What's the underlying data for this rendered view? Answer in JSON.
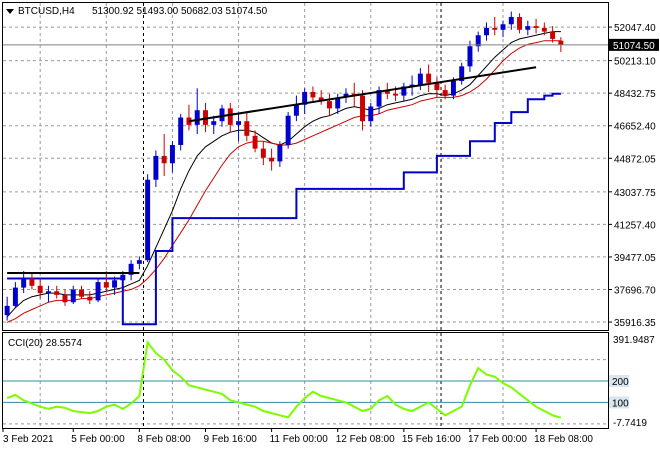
{
  "header": {
    "symbol": "BTCUSD,H4",
    "ohlc": "51300.92 51493.00 50682.03 51074.50"
  },
  "indicator": {
    "label": "CCI(20) 28.5574",
    "levels": [
      200,
      100
    ],
    "level_labels": [
      "200",
      "100"
    ],
    "axis_top": "391.9487",
    "axis_bottom": "-7.7419"
  },
  "chart_data": [
    {
      "type": "candlestick",
      "title": "BTCUSD,H4",
      "price_ticks": [
        52047.4,
        50213.1,
        48432.75,
        46652.4,
        44872.05,
        43037.75,
        41257.4,
        39477.05,
        37696.7,
        35916.35
      ],
      "price_tick_labels": [
        "52047.40",
        "50213.10",
        "48432.75",
        "46652.40",
        "44872.05",
        "43037.75",
        "41257.40",
        "39477.05",
        "37696.70",
        "35916.35"
      ],
      "ylim": [
        35700,
        53200
      ],
      "current_price": 51074.5,
      "current_price_label": "51074.50",
      "x_labels": [
        "3 Feb 2021",
        "5 Feb 00:00",
        "8 Feb 08:00",
        "9 Feb 16:00",
        "11 Feb 00:00",
        "12 Feb 08:00",
        "15 Feb 16:00",
        "17 Feb 00:00",
        "18 Feb 08:00"
      ],
      "bar_count": 68,
      "candles": [
        [
          36300,
          37300,
          36000,
          36800
        ],
        [
          36800,
          38100,
          36700,
          37800
        ],
        [
          37800,
          38700,
          37500,
          38300
        ],
        [
          38300,
          38600,
          37700,
          37900
        ],
        [
          37900,
          38300,
          37200,
          37500
        ],
        [
          37500,
          37900,
          37000,
          37600
        ],
        [
          37600,
          37900,
          37200,
          37400
        ],
        [
          37400,
          37700,
          36800,
          37000
        ],
        [
          37000,
          37900,
          36900,
          37700
        ],
        [
          37700,
          37900,
          37200,
          37300
        ],
        [
          37300,
          37600,
          36900,
          37100
        ],
        [
          37100,
          38300,
          37000,
          38100
        ],
        [
          38100,
          38700,
          37600,
          37800
        ],
        [
          37800,
          38400,
          37400,
          38200
        ],
        [
          38200,
          38700,
          37800,
          38500
        ],
        [
          38500,
          39300,
          38200,
          39100
        ],
        [
          39100,
          39500,
          38800,
          39300
        ],
        [
          39300,
          44000,
          39200,
          43700
        ],
        [
          43700,
          45300,
          43300,
          45000
        ],
        [
          45000,
          46200,
          43900,
          44600
        ],
        [
          44600,
          45800,
          44100,
          45600
        ],
        [
          45600,
          47300,
          45300,
          47100
        ],
        [
          47100,
          47800,
          46400,
          46700
        ],
        [
          46700,
          48700,
          46200,
          47500
        ],
        [
          47500,
          47900,
          46300,
          46700
        ],
        [
          46700,
          47200,
          46200,
          46900
        ],
        [
          46900,
          47800,
          46600,
          47600
        ],
        [
          47600,
          47900,
          46300,
          46700
        ],
        [
          46700,
          47300,
          45800,
          46900
        ],
        [
          46900,
          47400,
          45800,
          46100
        ],
        [
          46100,
          46400,
          45200,
          45400
        ],
        [
          45400,
          45800,
          44500,
          44900
        ],
        [
          44900,
          45400,
          44200,
          44700
        ],
        [
          44700,
          45800,
          44400,
          45600
        ],
        [
          45600,
          47400,
          45400,
          47200
        ],
        [
          47200,
          48300,
          46900,
          47800
        ],
        [
          47800,
          48700,
          47300,
          48500
        ],
        [
          48500,
          48800,
          47900,
          48200
        ],
        [
          48200,
          48600,
          47800,
          48000
        ],
        [
          48000,
          48400,
          47200,
          47600
        ],
        [
          47600,
          48400,
          47300,
          48200
        ],
        [
          48200,
          48700,
          47900,
          48400
        ],
        [
          48400,
          49000,
          47700,
          48300
        ],
        [
          48300,
          48600,
          46400,
          46900
        ],
        [
          46900,
          47900,
          46600,
          47700
        ],
        [
          47700,
          48800,
          47300,
          48600
        ],
        [
          48600,
          49000,
          48100,
          48400
        ],
        [
          48400,
          48800,
          48000,
          48300
        ],
        [
          48300,
          49000,
          48000,
          48800
        ],
        [
          48800,
          49400,
          48300,
          48900
        ],
        [
          48900,
          49800,
          48600,
          49500
        ],
        [
          49500,
          50000,
          48500,
          49000
        ],
        [
          49000,
          49300,
          48200,
          48600
        ],
        [
          48600,
          48900,
          48100,
          48300
        ],
        [
          48300,
          49300,
          48100,
          49100
        ],
        [
          49100,
          50100,
          48900,
          49900
        ],
        [
          49900,
          51300,
          49600,
          51000
        ],
        [
          51000,
          51800,
          50700,
          51600
        ],
        [
          51600,
          52300,
          51300,
          52000
        ],
        [
          52000,
          52600,
          51600,
          51900
        ],
        [
          51900,
          52400,
          51500,
          52200
        ],
        [
          52200,
          52900,
          51900,
          52600
        ],
        [
          52600,
          52800,
          51700,
          51900
        ],
        [
          51900,
          52400,
          51600,
          52100
        ],
        [
          52100,
          52500,
          51700,
          52000
        ],
        [
          52000,
          52300,
          51600,
          51800
        ],
        [
          51800,
          52100,
          51200,
          51400
        ],
        [
          51300,
          51493,
          50682,
          51074
        ]
      ],
      "series": [
        {
          "values": [
            36200,
            36700,
            37100,
            37300,
            37400,
            37500,
            37500,
            37400,
            37400,
            37400,
            37400,
            37500,
            37600,
            37700,
            37800,
            38000,
            38200,
            39000,
            40000,
            41000,
            42000,
            43200,
            44200,
            45000,
            45500,
            45800,
            46100,
            46300,
            46400,
            46400,
            46300,
            46000,
            45700,
            45600,
            45800,
            46200,
            46600,
            46900,
            47100,
            47200,
            47400,
            47600,
            47700,
            47600,
            47500,
            47600,
            47800,
            47900,
            48000,
            48100,
            48300,
            48400,
            48400,
            48300,
            48400,
            48600,
            48900,
            49400,
            49900,
            50400,
            50800,
            51200,
            51400,
            51500,
            51600,
            51700,
            51800,
            51800
          ]
        },
        {
          "values": [
            35900,
            36100,
            36400,
            36600,
            36800,
            37000,
            37100,
            37100,
            37100,
            37200,
            37200,
            37300,
            37400,
            37500,
            37600,
            37700,
            37900,
            38300,
            38800,
            39400,
            40100,
            40800,
            41500,
            42300,
            43100,
            43800,
            44500,
            45100,
            45500,
            45700,
            45800,
            45800,
            45700,
            45600,
            45600,
            45700,
            45900,
            46100,
            46300,
            46500,
            46700,
            46900,
            47100,
            47200,
            47200,
            47300,
            47500,
            47600,
            47700,
            47800,
            48000,
            48100,
            48200,
            48200,
            48200,
            48300,
            48500,
            48800,
            49200,
            49700,
            50200,
            50600,
            50900,
            51100,
            51200,
            51300,
            51300,
            51300
          ]
        },
        {
          "values": [
            38300,
            38300,
            38300,
            38300,
            38300,
            38300,
            38300,
            38300,
            38300,
            38300,
            38300,
            38300,
            38300,
            38300,
            35800,
            35800,
            35800,
            35800,
            39800,
            39800,
            41600,
            41600,
            41600,
            41600,
            41600,
            41600,
            41600,
            41600,
            41600,
            41600,
            41600,
            41600,
            41600,
            41600,
            41600,
            43200,
            43200,
            43200,
            43200,
            43200,
            43200,
            43200,
            43200,
            43200,
            43200,
            43200,
            43200,
            43200,
            44100,
            44100,
            44100,
            44100,
            45000,
            45000,
            45000,
            45000,
            45800,
            45800,
            45800,
            46800,
            46800,
            47400,
            47400,
            48100,
            48100,
            48300,
            48400,
            48400
          ]
        }
      ],
      "trendlines": [
        {
          "from": [
            0,
            38600
          ],
          "to": [
            16,
            38600
          ]
        },
        {
          "from": [
            22,
            46900
          ],
          "to": [
            64,
            49850
          ]
        }
      ],
      "vertical_separators": [
        16,
        52,
        103
      ]
    },
    {
      "type": "line",
      "title": "CCI(20)",
      "ylim": [
        -10,
        410
      ],
      "levels": [
        200,
        100
      ],
      "values": [
        120,
        135,
        110,
        95,
        80,
        70,
        80,
        75,
        60,
        55,
        50,
        60,
        80,
        90,
        70,
        95,
        130,
        380,
        330,
        300,
        250,
        220,
        180,
        170,
        160,
        150,
        140,
        110,
        100,
        90,
        80,
        60,
        50,
        40,
        30,
        80,
        120,
        150,
        130,
        120,
        110,
        100,
        80,
        60,
        70,
        110,
        130,
        90,
        70,
        60,
        80,
        100,
        70,
        40,
        60,
        80,
        180,
        260,
        230,
        220,
        190,
        170,
        140,
        110,
        80,
        60,
        40,
        28.5574
      ]
    }
  ]
}
